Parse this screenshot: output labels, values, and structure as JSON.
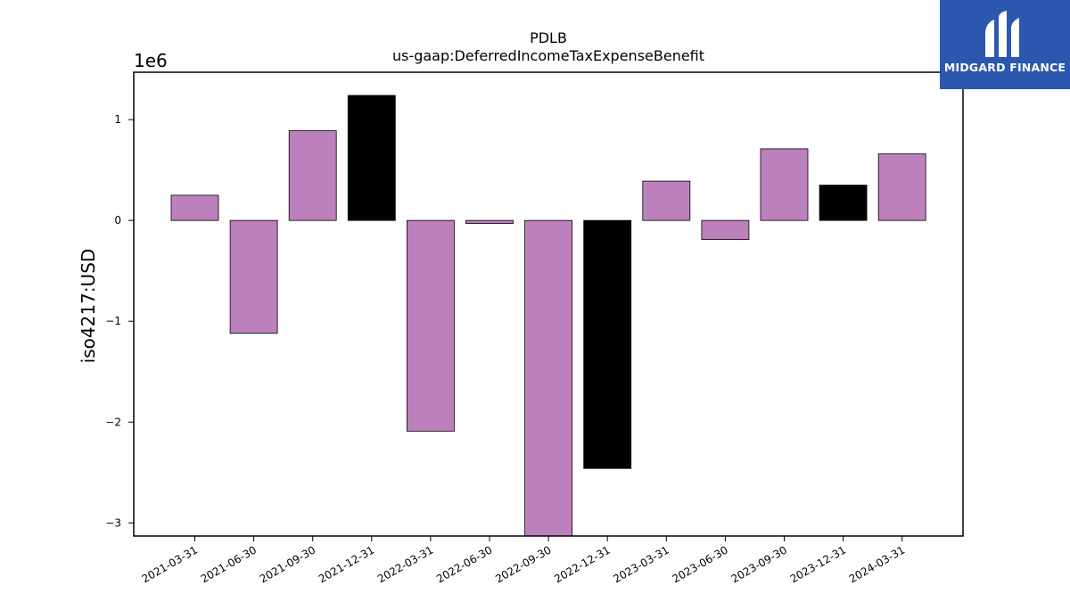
{
  "chart_data": {
    "type": "bar",
    "title": "PDLB",
    "subtitle": "us-gaap:DeferredIncomeTaxExpenseBenefit",
    "xlabel": "",
    "ylabel": "iso4217:USD",
    "y_scale_label": "1e6",
    "ylim": [
      -3.13,
      1.47
    ],
    "yticks": [
      1,
      0,
      -1,
      -2,
      -3
    ],
    "ytick_labels": [
      "1",
      "0",
      "−1",
      "−2",
      "−3"
    ],
    "categories": [
      "2021-03-31",
      "2021-06-30",
      "2021-09-30",
      "2021-12-31",
      "2022-03-31",
      "2022-06-30",
      "2022-09-30",
      "2022-12-31",
      "2023-03-31",
      "2023-06-30",
      "2023-09-30",
      "2023-12-31",
      "2024-03-31"
    ],
    "values": [
      0.25,
      -1.12,
      0.89,
      1.24,
      -2.09,
      -0.03,
      -3.13,
      -2.46,
      0.39,
      -0.19,
      0.71,
      0.35,
      0.66
    ],
    "bar_colors": [
      "#bc80bd",
      "#bc80bd",
      "#bc80bd",
      "#000000",
      "#bc80bd",
      "#bc80bd",
      "#bc80bd",
      "#000000",
      "#bc80bd",
      "#bc80bd",
      "#bc80bd",
      "#000000",
      "#bc80bd"
    ],
    "grid": false,
    "legend": "none"
  },
  "logo": {
    "text": "MIDGARD FINANCE",
    "background": "#2b58ae",
    "icon": "midgard-logo-icon"
  }
}
